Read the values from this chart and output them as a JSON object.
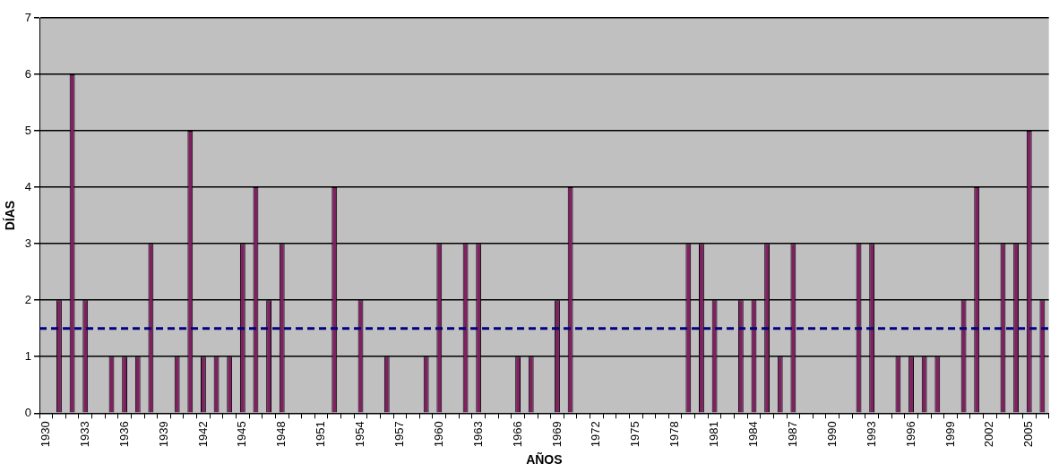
{
  "chart_data": {
    "type": "bar",
    "xlabel": "AÑOS",
    "ylabel": "DÍAS",
    "categories": [
      "1930",
      null,
      null,
      "1933",
      null,
      null,
      "1936",
      null,
      null,
      "1939",
      null,
      null,
      "1942",
      null,
      null,
      "1945",
      null,
      null,
      "1948",
      null,
      null,
      "1951",
      null,
      null,
      "1954",
      null,
      null,
      "1957",
      null,
      null,
      "1960",
      null,
      null,
      "1963",
      null,
      null,
      "1966",
      null,
      null,
      "1969",
      null,
      null,
      "1972",
      null,
      null,
      "1975",
      null,
      null,
      "1978",
      null,
      null,
      "1981",
      null,
      null,
      "1984",
      null,
      null,
      "1987",
      null,
      null,
      "1990",
      null,
      null,
      "1993",
      null,
      null,
      "1996",
      null,
      null,
      "1999",
      null,
      null,
      "2002",
      null,
      null,
      "2005",
      null
    ],
    "values": [
      0,
      2,
      6,
      2,
      0,
      1,
      1,
      1,
      3,
      0,
      1,
      5,
      1,
      1,
      1,
      3,
      4,
      2,
      3,
      0,
      0,
      0,
      4,
      0,
      2,
      0,
      1,
      0,
      0,
      1,
      3,
      0,
      3,
      3,
      0,
      0,
      1,
      1,
      0,
      2,
      4,
      0,
      0,
      0,
      0,
      0,
      0,
      0,
      0,
      3,
      3,
      2,
      0,
      2,
      2,
      3,
      1,
      3,
      0,
      0,
      0,
      0,
      3,
      3,
      0,
      1,
      1,
      1,
      1,
      0,
      2,
      4,
      0,
      3,
      3,
      5,
      2
    ],
    "color": "#7f2060",
    "ylim": [
      0,
      7
    ],
    "yticks": [
      0,
      1,
      2,
      3,
      4,
      5,
      6,
      7
    ],
    "grid": "y",
    "legend": false,
    "ref_lines": [
      {
        "axis": "y",
        "value": 1.5,
        "color": "#000080",
        "line_style": "dashed"
      }
    ]
  }
}
